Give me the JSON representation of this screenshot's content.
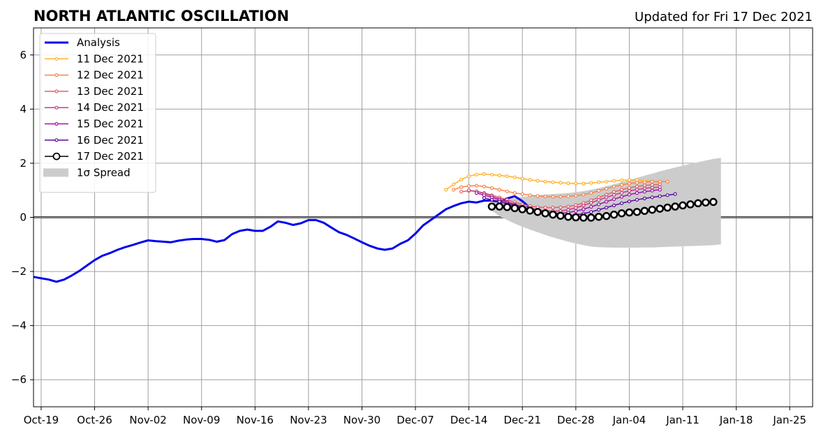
{
  "chart_data": {
    "type": "line",
    "title": "NORTH ATLANTIC OSCILLATION",
    "subtitle": "Updated for Fri 17 Dec 2021",
    "xlim": [
      "2021-10-18",
      "2022-01-28"
    ],
    "ylim": [
      -7,
      7
    ],
    "x_ticks": [
      {
        "date": "2021-10-19",
        "label": "Oct-19"
      },
      {
        "date": "2021-10-26",
        "label": "Oct-26"
      },
      {
        "date": "2021-11-02",
        "label": "Nov-02"
      },
      {
        "date": "2021-11-09",
        "label": "Nov-09"
      },
      {
        "date": "2021-11-16",
        "label": "Nov-16"
      },
      {
        "date": "2021-11-23",
        "label": "Nov-23"
      },
      {
        "date": "2021-11-30",
        "label": "Nov-30"
      },
      {
        "date": "2021-12-07",
        "label": "Dec-07"
      },
      {
        "date": "2021-12-14",
        "label": "Dec-14"
      },
      {
        "date": "2021-12-21",
        "label": "Dec-21"
      },
      {
        "date": "2021-12-28",
        "label": "Dec-28"
      },
      {
        "date": "2022-01-04",
        "label": "Jan-04"
      },
      {
        "date": "2022-01-11",
        "label": "Jan-11"
      },
      {
        "date": "2022-01-18",
        "label": "Jan-18"
      },
      {
        "date": "2022-01-25",
        "label": "Jan-25"
      }
    ],
    "y_ticks": [
      {
        "value": 6,
        "label": "6"
      },
      {
        "value": 4,
        "label": "4"
      },
      {
        "value": 2,
        "label": "2"
      },
      {
        "value": 0,
        "label": "0"
      },
      {
        "value": -2,
        "label": "−2"
      },
      {
        "value": -4,
        "label": "−4"
      },
      {
        "value": -6,
        "label": "−6"
      }
    ],
    "grid": true,
    "legend_position": "top-left",
    "spread_label": "1σ Spread",
    "spread": {
      "color": "#cccccc",
      "start_date": "2021-12-17",
      "upper": [
        0.55,
        0.62,
        0.68,
        0.72,
        0.76,
        0.79,
        0.82,
        0.84,
        0.86,
        0.88,
        0.9,
        0.93,
        0.97,
        1.02,
        1.08,
        1.15,
        1.22,
        1.3,
        1.38,
        1.46,
        1.54,
        1.62,
        1.7,
        1.77,
        1.84,
        1.91,
        1.98,
        2.04,
        2.1,
        2.16,
        2.2
      ],
      "lower": [
        0.25,
        0.05,
        -0.1,
        -0.23,
        -0.35,
        -0.45,
        -0.55,
        -0.65,
        -0.74,
        -0.82,
        -0.9,
        -0.97,
        -1.03,
        -1.08,
        -1.1,
        -1.11,
        -1.12,
        -1.12,
        -1.12,
        -1.12,
        -1.11,
        -1.11,
        -1.1,
        -1.09,
        -1.08,
        -1.07,
        -1.06,
        -1.05,
        -1.04,
        -1.03,
        -1.0
      ]
    },
    "series": [
      {
        "name": "Analysis",
        "color": "#0000ee",
        "style": "analysis",
        "start_date": "2021-10-18",
        "values": [
          -2.2,
          -2.25,
          -2.3,
          -2.38,
          -2.3,
          -2.15,
          -1.98,
          -1.78,
          -1.58,
          -1.42,
          -1.32,
          -1.2,
          -1.1,
          -1.02,
          -0.93,
          -0.85,
          -0.88,
          -0.9,
          -0.92,
          -0.86,
          -0.82,
          -0.8,
          -0.8,
          -0.83,
          -0.9,
          -0.84,
          -0.62,
          -0.5,
          -0.45,
          -0.5,
          -0.5,
          -0.35,
          -0.15,
          -0.2,
          -0.28,
          -0.22,
          -0.1,
          -0.1,
          -0.2,
          -0.38,
          -0.55,
          -0.65,
          -0.78,
          -0.92,
          -1.05,
          -1.15,
          -1.2,
          -1.15,
          -0.98,
          -0.85,
          -0.6,
          -0.3,
          -0.1,
          0.1,
          0.3,
          0.42,
          0.52,
          0.58,
          0.55,
          0.62,
          0.62,
          0.58,
          0.7,
          0.78,
          0.6,
          0.35
        ]
      },
      {
        "name": "11 Dec 2021",
        "color": "#feb32a",
        "style": "forecast",
        "start_date": "2021-12-11",
        "values": [
          1.02,
          1.22,
          1.4,
          1.52,
          1.58,
          1.6,
          1.58,
          1.55,
          1.52,
          1.48,
          1.43,
          1.39,
          1.35,
          1.32,
          1.3,
          1.28,
          1.26,
          1.25,
          1.25,
          1.27,
          1.3,
          1.32,
          1.35,
          1.37,
          1.38,
          1.38,
          1.36,
          1.33,
          1.3
        ]
      },
      {
        "name": "12 Dec 2021",
        "color": "#f5854d",
        "style": "forecast",
        "start_date": "2021-12-12",
        "values": [
          1.02,
          1.12,
          1.16,
          1.17,
          1.14,
          1.08,
          1.02,
          0.96,
          0.9,
          0.86,
          0.82,
          0.79,
          0.77,
          0.76,
          0.76,
          0.78,
          0.8,
          0.84,
          0.9,
          0.98,
          1.06,
          1.14,
          1.2,
          1.25,
          1.28,
          1.3,
          1.32,
          1.32,
          1.32
        ]
      },
      {
        "name": "13 Dec 2021",
        "color": "#e1626a",
        "style": "forecast",
        "start_date": "2021-12-13",
        "values": [
          0.95,
          0.98,
          0.96,
          0.9,
          0.82,
          0.74,
          0.65,
          0.56,
          0.48,
          0.42,
          0.38,
          0.36,
          0.36,
          0.37,
          0.4,
          0.45,
          0.53,
          0.63,
          0.74,
          0.84,
          0.94,
          1.02,
          1.09,
          1.14,
          1.18,
          1.2,
          1.22
        ]
      },
      {
        "name": "14 Dec 2021",
        "color": "#c53c86",
        "style": "forecast",
        "start_date": "2021-12-14",
        "values": [
          1.0,
          0.96,
          0.88,
          0.78,
          0.68,
          0.58,
          0.49,
          0.41,
          0.34,
          0.28,
          0.24,
          0.23,
          0.24,
          0.28,
          0.35,
          0.44,
          0.54,
          0.64,
          0.74,
          0.83,
          0.91,
          0.98,
          1.03,
          1.07,
          1.1,
          1.12
        ]
      },
      {
        "name": "15 Dec 2021",
        "color": "#9a19a4",
        "style": "forecast",
        "start_date": "2021-12-15",
        "values": [
          0.9,
          0.82,
          0.73,
          0.64,
          0.55,
          0.46,
          0.37,
          0.3,
          0.24,
          0.19,
          0.16,
          0.15,
          0.18,
          0.23,
          0.3,
          0.39,
          0.48,
          0.58,
          0.67,
          0.76,
          0.84,
          0.9,
          0.95,
          0.99,
          1.02
        ]
      },
      {
        "name": "16 Dec 2021",
        "color": "#5b099e",
        "style": "forecast",
        "start_date": "2021-12-16",
        "values": [
          0.72,
          0.65,
          0.58,
          0.5,
          0.42,
          0.34,
          0.26,
          0.18,
          0.12,
          0.08,
          0.06,
          0.06,
          0.09,
          0.14,
          0.2,
          0.28,
          0.36,
          0.44,
          0.52,
          0.59,
          0.65,
          0.7,
          0.74,
          0.78,
          0.82,
          0.86
        ]
      },
      {
        "name": "17 Dec 2021",
        "color": "#000000",
        "style": "current",
        "start_date": "2021-12-17",
        "values": [
          0.4,
          0.4,
          0.38,
          0.34,
          0.3,
          0.25,
          0.2,
          0.15,
          0.1,
          0.06,
          0.02,
          0.0,
          -0.01,
          -0.01,
          0.02,
          0.05,
          0.1,
          0.15,
          0.18,
          0.2,
          0.24,
          0.28,
          0.32,
          0.36,
          0.4,
          0.44,
          0.48,
          0.52,
          0.55,
          0.57
        ]
      }
    ]
  }
}
